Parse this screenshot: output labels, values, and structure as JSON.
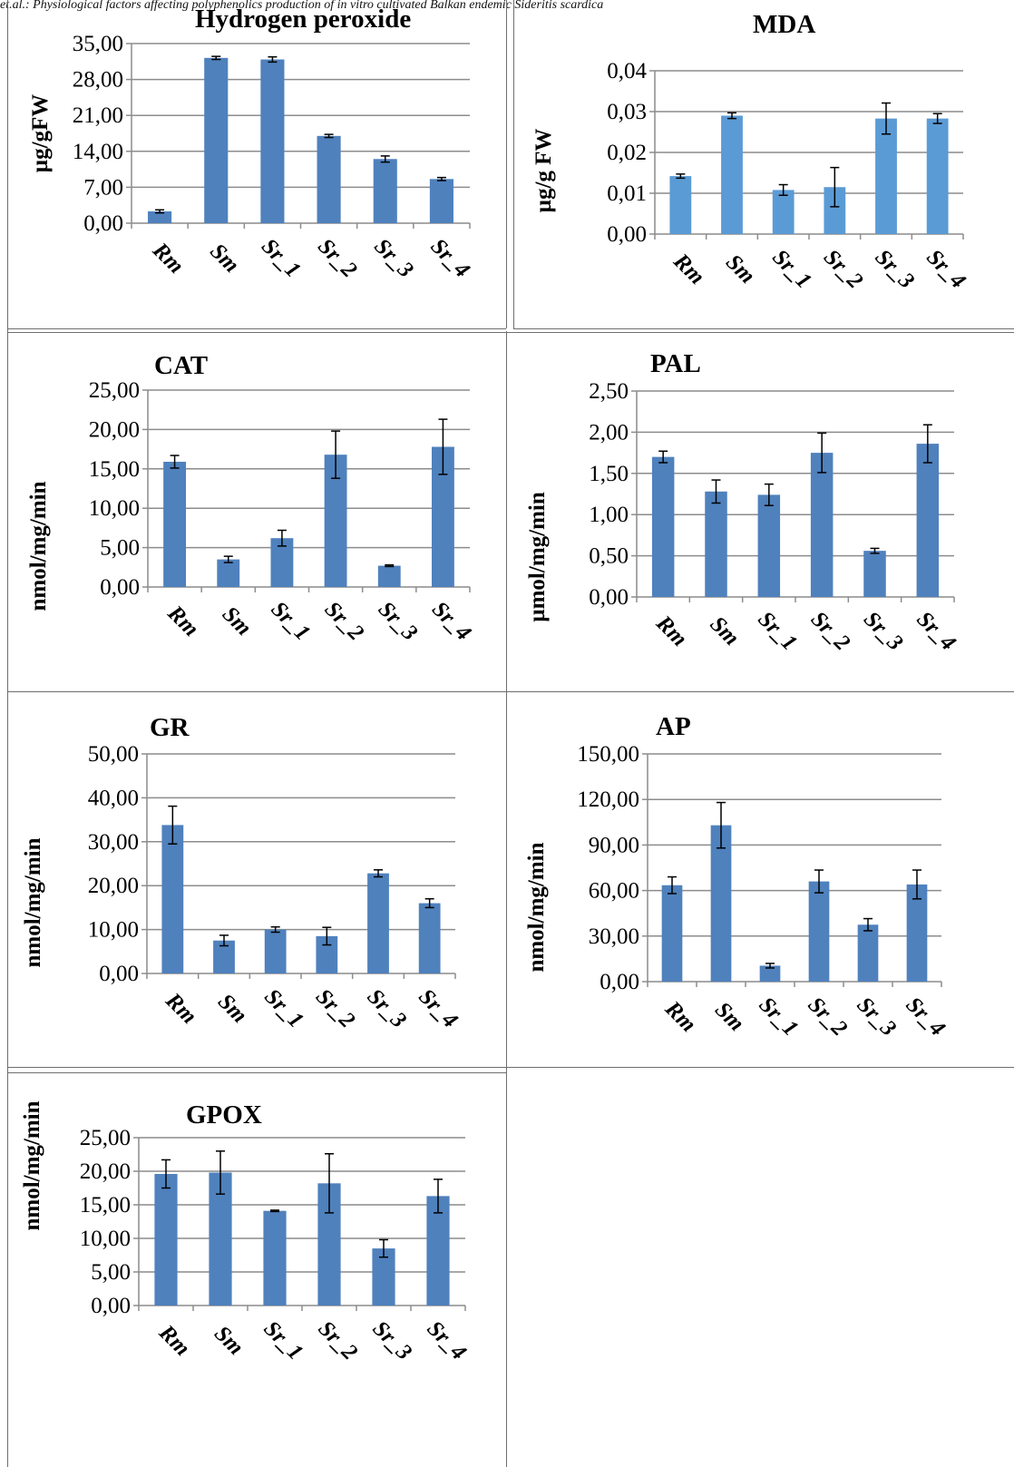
{
  "header": {
    "running_title": "et.al.: Physiological factors affecting polyphenolics production of in vitro cultivated Balkan endemic Sideritis scardica"
  },
  "colors": {
    "bar_dark": "#4f81bd",
    "bar_light": "#5b9bd5",
    "gridline": "#8c8c8c",
    "axis": "#8c8c8c",
    "error_bar": "#000000"
  },
  "chart_data": [
    {
      "id": "h2o2",
      "type": "bar",
      "title": "Hydrogen peroxide",
      "ylabel": "µg/gFW",
      "categories": [
        "Rm",
        "Sm",
        "Sr_1",
        "Sr_2",
        "Sr_3",
        "Sr_4"
      ],
      "values": [
        2.3,
        32.2,
        31.9,
        17.0,
        12.5,
        8.6
      ],
      "errors": [
        0.3,
        0.3,
        0.5,
        0.3,
        0.6,
        0.3
      ],
      "ylim": [
        0,
        35
      ],
      "yticks": [
        "0,00",
        "7,00",
        "14,00",
        "21,00",
        "28,00",
        "35,00"
      ],
      "grid": true,
      "bar_color": "#4f81bd"
    },
    {
      "id": "mda",
      "type": "bar",
      "title": "MDA",
      "ylabel": "µg/g FW",
      "categories": [
        "Rm",
        "Sm",
        "Sr_1",
        "Sr_2",
        "Sr_3",
        "Sr_4"
      ],
      "values": [
        0.0142,
        0.029,
        0.0108,
        0.0115,
        0.0283,
        0.0283
      ],
      "errors": [
        0.0005,
        0.0007,
        0.0013,
        0.0048,
        0.0038,
        0.0012
      ],
      "ylim": [
        0,
        0.04
      ],
      "yticks": [
        "0,00",
        "0,01",
        "0,02",
        "0,03",
        "0,04"
      ],
      "grid": true,
      "bar_color": "#5b9bd5"
    },
    {
      "id": "cat",
      "type": "bar",
      "title": "CAT",
      "ylabel": "nmol/mg/min",
      "categories": [
        "Rm",
        "Sm",
        "Sr_1",
        "Sr_2",
        "Sr_3",
        "Sr_4"
      ],
      "values": [
        15.9,
        3.5,
        6.2,
        16.8,
        2.7,
        17.8
      ],
      "errors": [
        0.8,
        0.4,
        1.0,
        3.0,
        0.1,
        3.5
      ],
      "ylim": [
        0,
        25
      ],
      "yticks": [
        "0,00",
        "5,00",
        "10,00",
        "15,00",
        "20,00",
        "25,00"
      ],
      "grid": true,
      "bar_color": "#4f81bd"
    },
    {
      "id": "pal",
      "type": "bar",
      "title": "PAL",
      "ylabel": "µmol/mg/min",
      "categories": [
        "Rm",
        "Sm",
        "Sr_1",
        "Sr_2",
        "Sr_3",
        "Sr_4"
      ],
      "values": [
        1.7,
        1.28,
        1.24,
        1.75,
        0.56,
        1.86
      ],
      "errors": [
        0.07,
        0.14,
        0.13,
        0.24,
        0.03,
        0.23
      ],
      "ylim": [
        0,
        2.5
      ],
      "yticks": [
        "0,00",
        "0,50",
        "1,00",
        "1,50",
        "2,00",
        "2,50"
      ],
      "grid": true,
      "bar_color": "#4f81bd"
    },
    {
      "id": "gr",
      "type": "bar",
      "title": "GR",
      "ylabel": "nmol/mg/min",
      "categories": [
        "Rm",
        "Sm",
        "Sr_1",
        "Sr_2",
        "Sr_3",
        "Sr_4"
      ],
      "values": [
        33.8,
        7.5,
        10.0,
        8.5,
        22.8,
        16.0
      ],
      "errors": [
        4.3,
        1.2,
        0.6,
        2.0,
        0.8,
        1.0
      ],
      "ylim": [
        0,
        50
      ],
      "yticks": [
        "0,00",
        "10,00",
        "20,00",
        "30,00",
        "40,00",
        "50,00"
      ],
      "grid": true,
      "bar_color": "#4f81bd"
    },
    {
      "id": "ap",
      "type": "bar",
      "title": "AP",
      "ylabel": "nmol/mg/min",
      "categories": [
        "Rm",
        "Sm",
        "Sr_1",
        "Sr_2",
        "Sr_3",
        "Sr_4"
      ],
      "values": [
        63.5,
        103.0,
        10.5,
        66.0,
        37.5,
        64.0
      ],
      "errors": [
        5.5,
        15.0,
        1.5,
        7.5,
        4.0,
        9.5
      ],
      "ylim": [
        0,
        150
      ],
      "yticks": [
        "0,00",
        "30,00",
        "60,00",
        "90,00",
        "120,00",
        "150,00"
      ],
      "grid": true,
      "bar_color": "#4f81bd"
    },
    {
      "id": "gpox",
      "type": "bar",
      "title": "GPOX",
      "ylabel": "nmol/mg/min",
      "categories": [
        "Rm",
        "Sm",
        "Sr_1",
        "Sr_2",
        "Sr_3",
        "Sr_4"
      ],
      "values": [
        19.6,
        19.8,
        14.1,
        18.2,
        8.5,
        16.3
      ],
      "errors": [
        2.1,
        3.2,
        0.1,
        4.4,
        1.3,
        2.5
      ],
      "ylim": [
        0,
        25
      ],
      "yticks": [
        "0,00",
        "5,00",
        "10,00",
        "15,00",
        "20,00",
        "25,00"
      ],
      "grid": true,
      "bar_color": "#4f81bd"
    }
  ]
}
